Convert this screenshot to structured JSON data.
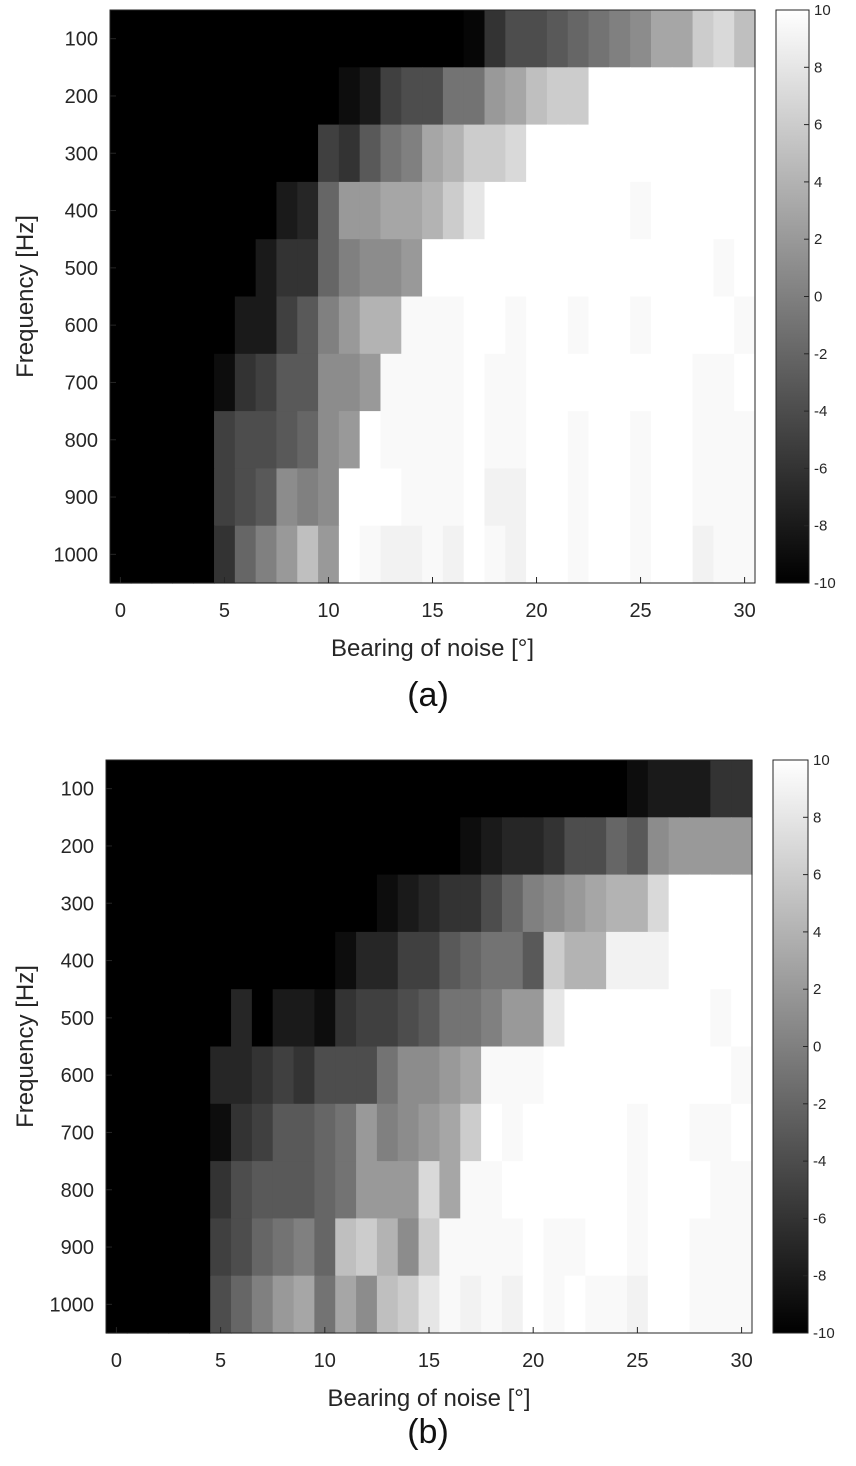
{
  "chart_data": [
    {
      "panel": "(a)",
      "type": "heatmap",
      "xlabel": "Bearing of noise [°]",
      "ylabel": "Frequency [Hz]",
      "x_ticks": [
        0,
        5,
        10,
        15,
        20,
        25,
        30
      ],
      "y_ticks": [
        100,
        200,
        300,
        400,
        500,
        600,
        700,
        800,
        900,
        1000
      ],
      "xlim": [
        -0.5,
        30.5
      ],
      "x_cells": [
        0,
        1,
        2,
        3,
        4,
        5,
        6,
        7,
        8,
        9,
        10,
        11,
        12,
        13,
        14,
        15,
        16,
        17,
        18,
        19,
        20,
        21,
        22,
        23,
        24,
        25,
        26,
        27,
        28,
        29,
        30
      ],
      "y_cells": [
        100,
        200,
        300,
        400,
        500,
        600,
        700,
        800,
        900,
        1000
      ],
      "colormap": "gray",
      "clim": [
        -10,
        10
      ],
      "colorbar_ticks": [
        10,
        8,
        6,
        4,
        2,
        0,
        -2,
        -4,
        -6,
        -8,
        -10
      ],
      "values": [
        [
          -10,
          -10,
          -10,
          -10,
          -10,
          -10,
          -10,
          -10,
          -10,
          -10,
          -10,
          -10,
          -10,
          -10,
          -10,
          -10,
          -10,
          -9.5,
          -6,
          -4,
          -4,
          -3,
          -2,
          -1,
          0,
          1,
          3,
          3,
          6,
          7,
          5
        ],
        [
          -10,
          -10,
          -10,
          -10,
          -10,
          -10,
          -10,
          -10,
          -10,
          -10,
          -10,
          -9,
          -8,
          -5,
          -4,
          -4,
          -1,
          -1,
          2,
          3,
          5,
          6,
          6,
          10,
          10,
          10,
          10,
          10,
          10,
          10,
          10
        ],
        [
          -10,
          -10,
          -10,
          -10,
          -10,
          -10,
          -10,
          -10,
          -10,
          -10,
          -5,
          -6,
          -3,
          -1,
          0,
          3,
          4,
          6,
          6,
          7,
          10,
          10,
          10,
          10,
          10,
          10,
          10,
          10,
          10,
          10,
          10
        ],
        [
          -10,
          -10,
          -10,
          -10,
          -10,
          -10,
          -10,
          -10,
          -8,
          -7,
          -2,
          2,
          2,
          3,
          3,
          4,
          6,
          8,
          10,
          10,
          10,
          10,
          10,
          10,
          10,
          9.5,
          10,
          10,
          10,
          10,
          10
        ],
        [
          -10,
          -10,
          -10,
          -10,
          -10,
          -10,
          -10,
          -8,
          -6,
          -6,
          -2,
          0,
          1,
          1,
          2,
          10,
          10,
          10,
          10,
          10,
          10,
          10,
          10,
          10,
          10,
          10,
          10,
          10,
          10,
          9.5,
          10
        ],
        [
          -10,
          -10,
          -10,
          -10,
          -10,
          -10,
          -8,
          -8,
          -5,
          -3,
          0,
          2,
          4,
          4,
          9.5,
          9.5,
          9.5,
          10,
          10,
          9.5,
          10,
          10,
          9.5,
          10,
          10,
          9.5,
          10,
          10,
          10,
          10,
          9.5
        ],
        [
          -10,
          -10,
          -10,
          -10,
          -10,
          -9,
          -6,
          -5,
          -3,
          -3,
          1,
          1,
          2,
          9.5,
          9.5,
          9.5,
          9.5,
          10,
          9.5,
          9.5,
          10,
          10,
          10,
          10,
          10,
          10,
          10,
          10,
          9.5,
          9.5,
          10
        ],
        [
          -10,
          -10,
          -10,
          -10,
          -10,
          -5,
          -4,
          -4,
          -3,
          -2,
          1,
          2,
          10,
          9.5,
          9.5,
          9.5,
          9.5,
          10,
          9.5,
          9.5,
          10,
          10,
          9.5,
          10,
          10,
          9.5,
          10,
          10,
          9.5,
          9.5,
          9.5
        ],
        [
          -10,
          -10,
          -10,
          -10,
          -10,
          -5,
          -4,
          -3,
          1,
          0,
          1,
          10,
          10,
          10,
          9.5,
          9.5,
          9.5,
          10,
          9,
          9,
          10,
          10,
          9.5,
          10,
          10,
          9.5,
          10,
          10,
          9.5,
          9.5,
          9.5
        ],
        [
          -10,
          -10,
          -10,
          -10,
          -10,
          -6,
          -2,
          0,
          2,
          5,
          2,
          10,
          9.5,
          9,
          9,
          9.5,
          9,
          10,
          9.5,
          9,
          10,
          10,
          9.5,
          10,
          10,
          9.5,
          10,
          10,
          9,
          9.5,
          9.5
        ]
      ]
    },
    {
      "panel": "(b)",
      "type": "heatmap",
      "xlabel": "Bearing of noise [°]",
      "ylabel": "Frequency [Hz]",
      "x_ticks": [
        0,
        5,
        10,
        15,
        20,
        25,
        30
      ],
      "y_ticks": [
        100,
        200,
        300,
        400,
        500,
        600,
        700,
        800,
        900,
        1000
      ],
      "xlim": [
        -0.5,
        30.5
      ],
      "x_cells": [
        0,
        1,
        2,
        3,
        4,
        5,
        6,
        7,
        8,
        9,
        10,
        11,
        12,
        13,
        14,
        15,
        16,
        17,
        18,
        19,
        20,
        21,
        22,
        23,
        24,
        25,
        26,
        27,
        28,
        29,
        30
      ],
      "y_cells": [
        100,
        200,
        300,
        400,
        500,
        600,
        700,
        800,
        900,
        1000
      ],
      "colormap": "gray",
      "clim": [
        -10,
        10
      ],
      "colorbar_ticks": [
        10,
        8,
        6,
        4,
        2,
        0,
        -2,
        -4,
        -6,
        -8,
        -10
      ],
      "values": [
        [
          -10,
          -10,
          -10,
          -10,
          -10,
          -10,
          -10,
          -10,
          -10,
          -10,
          -10,
          -10,
          -10,
          -10,
          -10,
          -10,
          -10,
          -10,
          -10,
          -10,
          -10,
          -10,
          -10,
          -10,
          -10,
          -9,
          -8,
          -8,
          -8,
          -6,
          -6
        ],
        [
          -10,
          -10,
          -10,
          -10,
          -10,
          -10,
          -10,
          -10,
          -10,
          -10,
          -10,
          -10,
          -10,
          -10,
          -10,
          -10,
          -10,
          -9,
          -8,
          -7,
          -7,
          -6,
          -4,
          -4,
          -2,
          -3,
          1,
          2,
          2,
          2,
          2
        ],
        [
          -10,
          -10,
          -10,
          -10,
          -10,
          -10,
          -10,
          -10,
          -10,
          -10,
          -10,
          -10,
          -10,
          -9,
          -8,
          -7,
          -6,
          -6,
          -4,
          -2,
          0,
          1,
          2,
          3,
          4,
          4,
          7,
          10,
          10,
          10,
          10
        ],
        [
          -10,
          -10,
          -10,
          -10,
          -10,
          -10,
          -10,
          -10,
          -10,
          -10,
          -10,
          -9,
          -7,
          -7,
          -5,
          -5,
          -3,
          -2,
          -1,
          -1,
          -3,
          6,
          4,
          4,
          9,
          9,
          9,
          10,
          10,
          10,
          10
        ],
        [
          -10,
          -10,
          -10,
          -10,
          -10,
          -10,
          -7,
          -10,
          -8,
          -8,
          -9,
          -6,
          -5,
          -5,
          -4,
          -3,
          -1,
          -1,
          0,
          2,
          2,
          8,
          10,
          10,
          10,
          10,
          10,
          10,
          10,
          9.5,
          10
        ],
        [
          -10,
          -10,
          -10,
          -10,
          -10,
          -7,
          -7,
          -6,
          -5,
          -6,
          -4,
          -4,
          -4,
          -1,
          1,
          1,
          2,
          3,
          9.5,
          9.5,
          9.5,
          10,
          10,
          10,
          10,
          10,
          10,
          10,
          10,
          10,
          9.5
        ],
        [
          -10,
          -10,
          -10,
          -10,
          -10,
          -9,
          -6,
          -5,
          -3,
          -3,
          -2,
          -1,
          2,
          0,
          1,
          2,
          3,
          6,
          10,
          9.5,
          10,
          10,
          10,
          10,
          10,
          9.5,
          10,
          10,
          9.5,
          9.5,
          10
        ],
        [
          -10,
          -10,
          -10,
          -10,
          -10,
          -6,
          -4,
          -3,
          -3,
          -3,
          -2,
          -1,
          2,
          2,
          2,
          7,
          3,
          9.5,
          9.5,
          10,
          10,
          10,
          10,
          10,
          10,
          9.5,
          10,
          10,
          10,
          9.5,
          9.5
        ],
        [
          -10,
          -10,
          -10,
          -10,
          -10,
          -5,
          -4,
          -2,
          -1,
          0,
          -2,
          5,
          6,
          4,
          1,
          6,
          9.5,
          9.5,
          9.5,
          9.5,
          10,
          9.5,
          9.5,
          10,
          10,
          9.5,
          10,
          10,
          9.5,
          9.5,
          9.5
        ],
        [
          -10,
          -10,
          -10,
          -10,
          -10,
          -4,
          -2,
          0,
          2,
          3,
          -1,
          3,
          1,
          5,
          6,
          8,
          9.5,
          9,
          9.5,
          9,
          10,
          9.5,
          10,
          9.5,
          9.5,
          9,
          10,
          10,
          9.5,
          9.5,
          9.5
        ]
      ]
    }
  ],
  "captions": {
    "a": "(a)",
    "b": "(b)"
  }
}
